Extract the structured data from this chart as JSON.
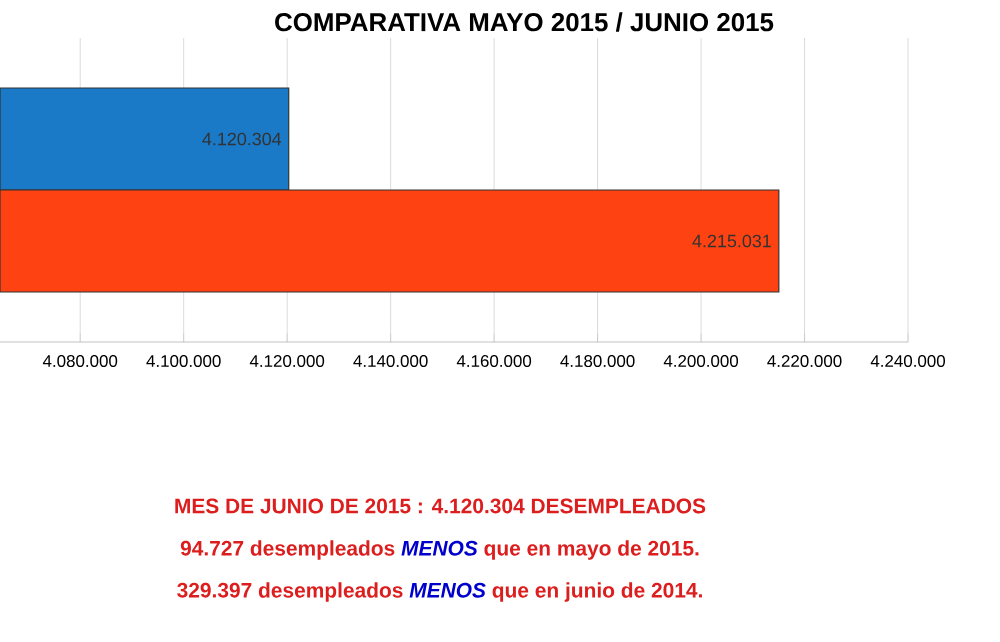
{
  "chart_data": {
    "type": "bar",
    "orientation": "horizontal",
    "title": "COMPARATIVA MAYO  2015 /  JUNIO 2015",
    "categories": [
      null,
      null
    ],
    "values": [
      4120304,
      4215031
    ],
    "colors": [
      "#1a7ac8",
      "#ff4212"
    ],
    "value_labels": [
      "4.120.304",
      "4.215.031"
    ],
    "xlim": [
      4064500,
      4240000
    ],
    "xticks": [
      {
        "value": 4080000,
        "label": "4.080.000"
      },
      {
        "value": 4100000,
        "label": "4.100.000"
      },
      {
        "value": 4120000,
        "label": "4.120.000"
      },
      {
        "value": 4140000,
        "label": "4.140.000"
      },
      {
        "value": 4160000,
        "label": "4.160.000"
      },
      {
        "value": 4180000,
        "label": "4.180.000"
      },
      {
        "value": 4200000,
        "label": "4.200.000"
      },
      {
        "value": 4220000,
        "label": "4.220.000"
      },
      {
        "value": 4240000,
        "label": "4.240.000"
      }
    ],
    "grid": "x",
    "annotations": [
      "MES DE JUNIO DE 2015 : 4.120.304 DESEMPLEADOS",
      "94.727 desempleados *MENOS* que en mayo de 2015.",
      "329.397 desempleados *MENOS* que en junio de 2014."
    ]
  }
}
